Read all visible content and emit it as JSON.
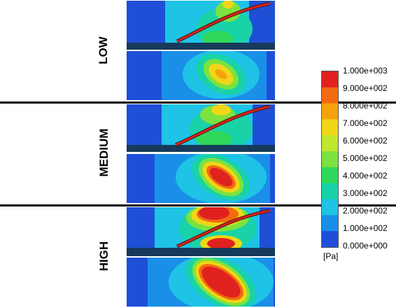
{
  "rows": [
    {
      "label": "LOW",
      "intensity": 0.55
    },
    {
      "label": "MEDIUM",
      "intensity": 0.8
    },
    {
      "label": "HIGH",
      "intensity": 1.0
    }
  ],
  "legend": {
    "ticks": [
      "1.000e+003",
      "9.000e+002",
      "8.000e+002",
      "7.000e+002",
      "6.000e+002",
      "5.000e+002",
      "4.000e+002",
      "3.000e+002",
      "2.000e+002",
      "1.000e+002",
      "0.000e+000"
    ],
    "unit": "[Pa]",
    "colors": [
      "#e0221e",
      "#f26a12",
      "#f5a30c",
      "#f0d617",
      "#bfe82e",
      "#7ce23e",
      "#2fd85a",
      "#19d2a8",
      "#1ec3e6",
      "#1a8fe8",
      "#1f4fd8"
    ]
  }
}
